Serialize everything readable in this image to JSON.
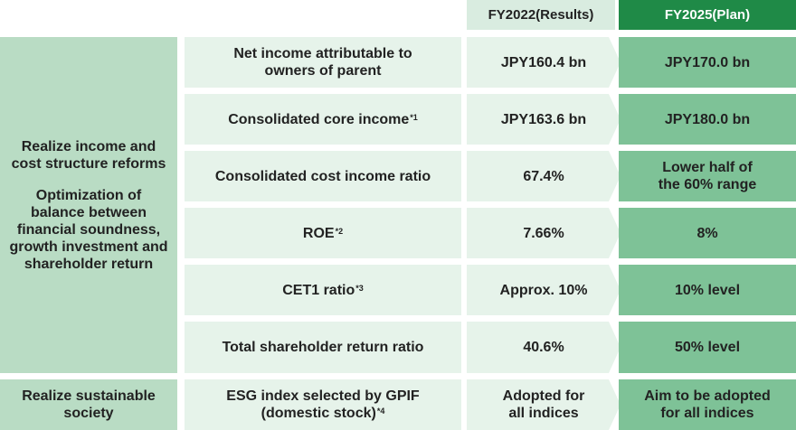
{
  "headers": {
    "results": "FY2022(Results)",
    "plan": "FY2025(Plan)"
  },
  "category_reform": {
    "line1": "Realize income and",
    "line2": "cost structure reforms",
    "line3": "Optimization of",
    "line4": "balance between",
    "line5": "financial soundness,",
    "line6": "growth investment and",
    "line7": "shareholder return"
  },
  "category_sustain": {
    "line1": "Realize sustainable",
    "line2": "society"
  },
  "rows": [
    {
      "label_line1": "Net income attributable to",
      "label_line2": "owners of parent",
      "result": "JPY160.4 bn",
      "plan": "JPY170.0 bn"
    },
    {
      "label": "Consolidated core income",
      "note": "*1",
      "result": "JPY163.6 bn",
      "plan": "JPY180.0 bn"
    },
    {
      "label": "Consolidated cost income ratio",
      "result": "67.4%",
      "plan_line1": "Lower half of",
      "plan_line2": "the 60% range"
    },
    {
      "label": "ROE",
      "note": "*2",
      "result": "7.66%",
      "plan": "8%"
    },
    {
      "label": "CET1 ratio",
      "note": "*3",
      "result": "Approx. 10%",
      "plan": "10% level"
    },
    {
      "label": "Total shareholder return ratio",
      "result": "40.6%",
      "plan": "50% level"
    },
    {
      "label_line1": "ESG index selected by GPIF",
      "label_line2": "(domestic stock)",
      "note": "*4",
      "result_line1": "Adopted for",
      "result_line2": "all indices",
      "plan_line1": "Aim to be adopted",
      "plan_line2": "for all indices"
    }
  ]
}
